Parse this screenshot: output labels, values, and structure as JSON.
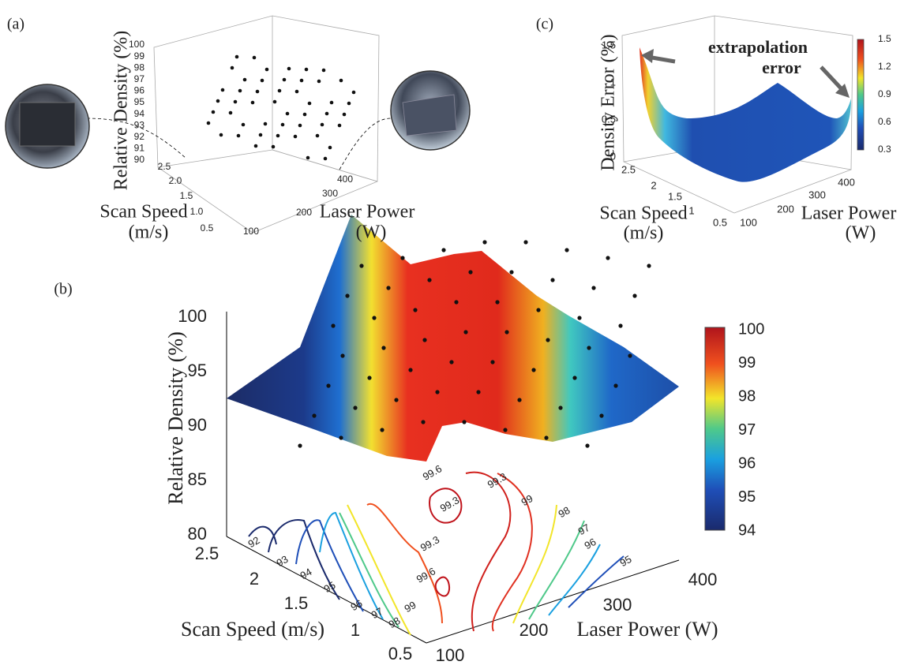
{
  "panels": [
    {
      "label": "(a)",
      "z_axis_title": "Relative Density (%)",
      "z_ticks": [
        "90",
        "91",
        "92",
        "93",
        "94",
        "95",
        "96",
        "97",
        "98",
        "99",
        "100"
      ],
      "x_axis_title": [
        "Scan Speed",
        "(m/s)"
      ],
      "x_ticks": [
        "2.5",
        "2.0",
        "1.5",
        "1.0",
        "0.5"
      ],
      "y_axis_title": [
        "Laser Power",
        "(W)"
      ],
      "y_ticks": [
        "100",
        "200",
        "300",
        "400"
      ]
    },
    {
      "label": "(b)",
      "z_axis_title": "Relative Density (%)",
      "z_ticks": [
        "100",
        "95",
        "90",
        "85",
        "80"
      ],
      "x_axis_title": [
        "Scan Speed (m/s)"
      ],
      "x_ticks": [
        "2.5",
        "2",
        "1.5",
        "1",
        "0.5"
      ],
      "y_axis_title": [
        "Laser Power (W)"
      ],
      "y_ticks": [
        "100",
        "200",
        "300",
        "400"
      ],
      "colorbar_ticks": [
        "100",
        "99",
        "98",
        "97",
        "96",
        "95",
        "94"
      ],
      "contour_labels": [
        "92",
        "93",
        "94",
        "95",
        "96",
        "97",
        "98",
        "99",
        "99.3",
        "99.6",
        "99.3",
        "99.6",
        "99.3",
        "99",
        "98",
        "97",
        "96",
        "95"
      ]
    },
    {
      "label": "(c)",
      "z_axis_title": "Density Error (%)",
      "z_ticks": [
        "1.5",
        "1",
        "0.5",
        "0"
      ],
      "x_axis_title": [
        "Scan Speed",
        "(m/s)"
      ],
      "x_ticks": [
        "2.5",
        "2",
        "1.5",
        "1",
        "0.5"
      ],
      "y_axis_title": [
        "Laser Power",
        "(W)"
      ],
      "y_ticks": [
        "100",
        "200",
        "300",
        "400"
      ],
      "colorbar_ticks": [
        "1.5",
        "1.2",
        "0.9",
        "0.6",
        "0.3"
      ],
      "annotation": [
        "extrapolation",
        "error"
      ]
    }
  ]
}
